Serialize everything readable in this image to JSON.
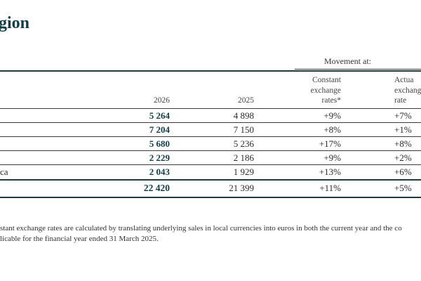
{
  "title": "gion",
  "movement_header": "Movement at:",
  "columns": {
    "y2026": "2026",
    "y2025": "2025",
    "constant": [
      "Constant",
      "exchange",
      "rates*"
    ],
    "actual": [
      "Actua",
      "exchang",
      "rate"
    ]
  },
  "rows": [
    {
      "label": "",
      "v2026": "5 264",
      "v2025": "4 898",
      "constant": "+9%",
      "actual": "+7%"
    },
    {
      "label": "",
      "v2026": "7 204",
      "v2025": "7 150",
      "constant": "+8%",
      "actual": "+1%"
    },
    {
      "label": "",
      "v2026": "5 680",
      "v2025": "5 236",
      "constant": "+17%",
      "actual": "+8%"
    },
    {
      "label": "",
      "v2026": "2 229",
      "v2025": "2 186",
      "constant": "+9%",
      "actual": "+2%"
    },
    {
      "label": "ca",
      "v2026": "2 043",
      "v2025": "1 929",
      "constant": "+13%",
      "actual": "+6%"
    }
  ],
  "total": {
    "v2026": "22 420",
    "v2025": "21 399",
    "constant": "+11%",
    "actual": "+5%"
  },
  "footnote": [
    "stant exchange rates are calculated by translating underlying sales in local currencies into euros in both the current year and the co",
    "licable for the financial year ended 31 March 2025."
  ]
}
